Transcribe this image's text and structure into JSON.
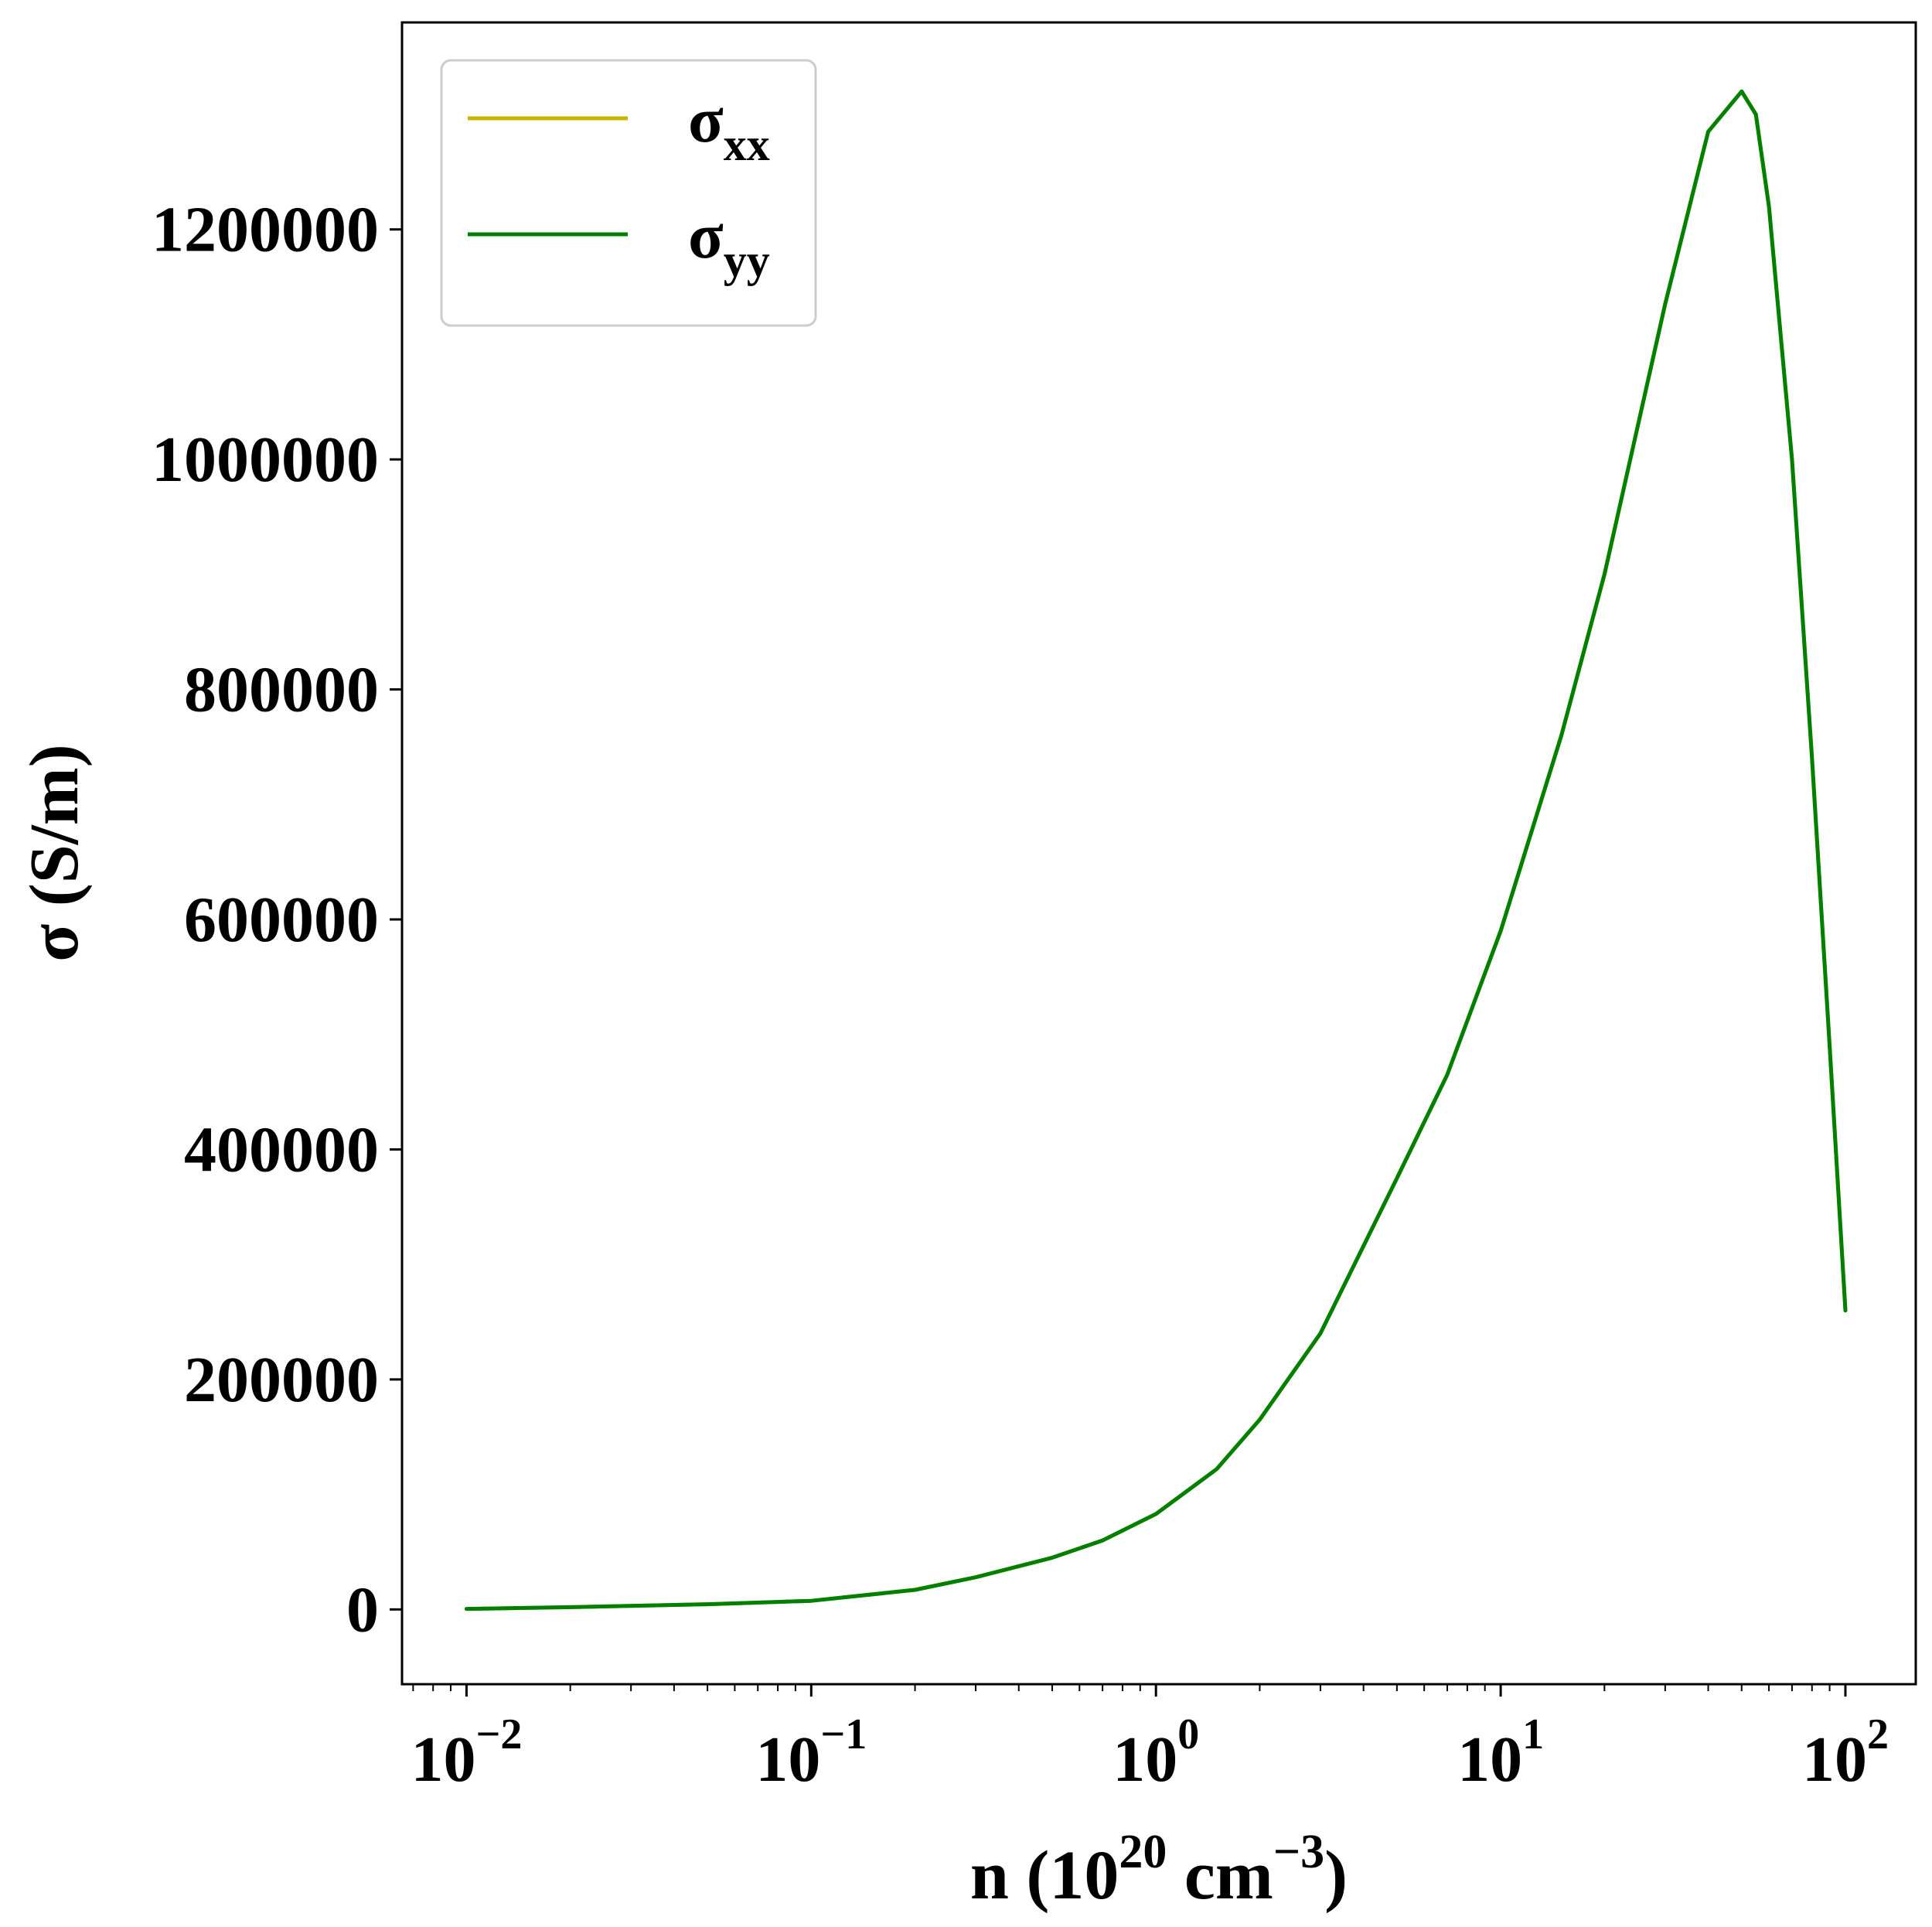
{
  "chart_data": {
    "type": "line",
    "title": "",
    "xlabel": {
      "base": "n (10",
      "exp1": "20",
      "mid": " cm",
      "exp2": "−3",
      "end": ")"
    },
    "ylabel": "σ (S/m)",
    "x_scale": "log",
    "xlim": [
      0.0065,
      160
    ],
    "ylim": [
      -65000,
      1380000
    ],
    "x_ticks": [
      {
        "base": "10",
        "exp": "−2",
        "value": 0.01
      },
      {
        "base": "10",
        "exp": "−1",
        "value": 0.1
      },
      {
        "base": "10",
        "exp": "0",
        "value": 1
      },
      {
        "base": "10",
        "exp": "1",
        "value": 10
      },
      {
        "base": "10",
        "exp": "2",
        "value": 100
      }
    ],
    "y_ticks": [
      {
        "label": "0",
        "value": 0
      },
      {
        "label": "200000",
        "value": 200000
      },
      {
        "label": "400000",
        "value": 400000
      },
      {
        "label": "600000",
        "value": 600000
      },
      {
        "label": "800000",
        "value": 800000
      },
      {
        "label": "1000000",
        "value": 1000000
      },
      {
        "label": "1200000",
        "value": 1200000
      }
    ],
    "grid": false,
    "legend_position": "top-left",
    "series": [
      {
        "name": "σxx",
        "name_base": "σ",
        "name_sub": "xx",
        "color": "#c8b400",
        "x": [
          0.01,
          0.02,
          0.05,
          0.1,
          0.2,
          0.3,
          0.5,
          0.7,
          1.0,
          1.5,
          2.0,
          3.0,
          5.0,
          7.0,
          10,
          15,
          20,
          30,
          40,
          50,
          55,
          60,
          70,
          80,
          90,
          100
        ],
        "y": [
          500,
          2000,
          4500,
          7500,
          17000,
          28000,
          45000,
          60000,
          83000,
          122000,
          165000,
          240000,
          375000,
          465000,
          590000,
          760000,
          900000,
          1135000,
          1285000,
          1320000,
          1300000,
          1220000,
          1000000,
          740000,
          490000,
          260000
        ]
      },
      {
        "name": "σyy",
        "name_base": "σ",
        "name_sub": "yy",
        "color": "#008000",
        "x": [
          0.01,
          0.02,
          0.05,
          0.1,
          0.2,
          0.3,
          0.5,
          0.7,
          1.0,
          1.5,
          2.0,
          3.0,
          5.0,
          7.0,
          10,
          15,
          20,
          30,
          40,
          50,
          55,
          60,
          70,
          80,
          90,
          100
        ],
        "y": [
          500,
          2000,
          4500,
          7500,
          17000,
          28000,
          45000,
          60000,
          83000,
          122000,
          165000,
          240000,
          375000,
          465000,
          590000,
          760000,
          900000,
          1135000,
          1285000,
          1320000,
          1300000,
          1220000,
          1000000,
          740000,
          490000,
          260000
        ]
      }
    ]
  }
}
